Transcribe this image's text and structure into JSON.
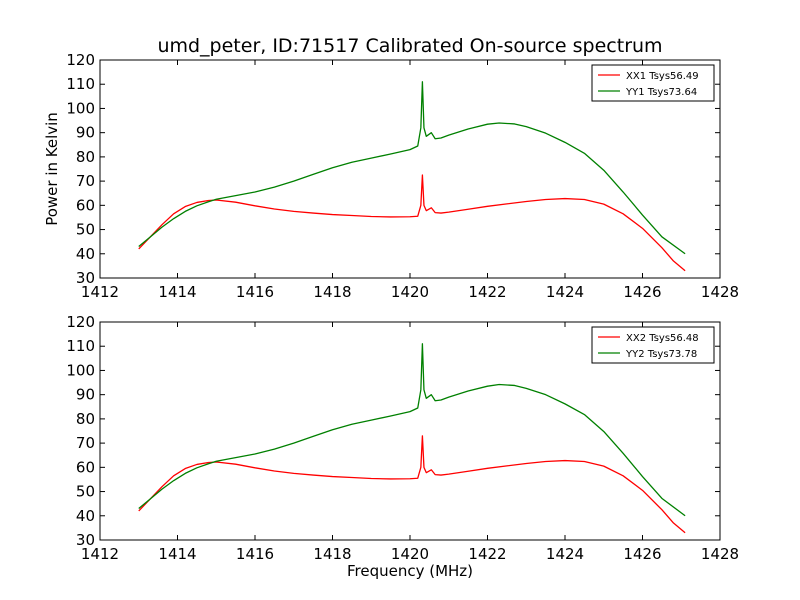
{
  "chart_data": [
    {
      "type": "line",
      "title": "umd_peter, ID:71517 Calibrated On-source spectrum",
      "xlabel": "",
      "ylabel": "Power in Kelvin",
      "xlim": [
        1412,
        1428
      ],
      "ylim": [
        30,
        120
      ],
      "xticks": [
        "1412",
        "1414",
        "1416",
        "1418",
        "1420",
        "1422",
        "1424",
        "1426",
        "1428"
      ],
      "yticks": [
        "30",
        "40",
        "50",
        "60",
        "70",
        "80",
        "90",
        "100",
        "110",
        "120"
      ],
      "legend_position": "top-right",
      "grid": false,
      "series": [
        {
          "name": "XX1 Tsys56.49",
          "color": "#ff0000",
          "points": [
            [
              1413.0,
              42
            ],
            [
              1413.3,
              47
            ],
            [
              1413.6,
              52
            ],
            [
              1413.9,
              56.5
            ],
            [
              1414.2,
              59.5
            ],
            [
              1414.5,
              61.2
            ],
            [
              1414.8,
              62.0
            ],
            [
              1415.0,
              62.2
            ],
            [
              1415.5,
              61.3
            ],
            [
              1416.0,
              59.8
            ],
            [
              1416.5,
              58.5
            ],
            [
              1417.0,
              57.5
            ],
            [
              1417.5,
              56.8
            ],
            [
              1418.0,
              56.2
            ],
            [
              1418.5,
              55.8
            ],
            [
              1419.0,
              55.4
            ],
            [
              1419.5,
              55.2
            ],
            [
              1420.0,
              55.3
            ],
            [
              1420.2,
              55.5
            ],
            [
              1420.28,
              60
            ],
            [
              1420.32,
              72.5
            ],
            [
              1420.36,
              60
            ],
            [
              1420.42,
              57.8
            ],
            [
              1420.55,
              59
            ],
            [
              1420.65,
              57
            ],
            [
              1420.8,
              56.8
            ],
            [
              1421.0,
              57.2
            ],
            [
              1421.5,
              58.4
            ],
            [
              1422.0,
              59.6
            ],
            [
              1422.5,
              60.6
            ],
            [
              1423.0,
              61.6
            ],
            [
              1423.5,
              62.4
            ],
            [
              1424.0,
              62.8
            ],
            [
              1424.5,
              62.4
            ],
            [
              1425.0,
              60.5
            ],
            [
              1425.5,
              56.5
            ],
            [
              1426.0,
              50.5
            ],
            [
              1426.5,
              42.5
            ],
            [
              1426.8,
              37
            ],
            [
              1427.1,
              33
            ]
          ]
        },
        {
          "name": "YY1 Tsys73.64",
          "color": "#008000",
          "points": [
            [
              1413.0,
              43
            ],
            [
              1413.3,
              47
            ],
            [
              1413.6,
              51
            ],
            [
              1413.9,
              54.5
            ],
            [
              1414.2,
              57.5
            ],
            [
              1414.5,
              59.8
            ],
            [
              1414.8,
              61.5
            ],
            [
              1415.0,
              62.5
            ],
            [
              1415.5,
              64.0
            ],
            [
              1416.0,
              65.5
            ],
            [
              1416.5,
              67.5
            ],
            [
              1417.0,
              70.0
            ],
            [
              1417.5,
              72.8
            ],
            [
              1418.0,
              75.5
            ],
            [
              1418.5,
              77.8
            ],
            [
              1419.0,
              79.5
            ],
            [
              1419.5,
              81.2
            ],
            [
              1420.0,
              83.0
            ],
            [
              1420.2,
              84.5
            ],
            [
              1420.28,
              92
            ],
            [
              1420.32,
              111
            ],
            [
              1420.36,
              92
            ],
            [
              1420.42,
              88.5
            ],
            [
              1420.55,
              90
            ],
            [
              1420.65,
              87.5
            ],
            [
              1420.8,
              87.8
            ],
            [
              1421.0,
              89.0
            ],
            [
              1421.5,
              91.5
            ],
            [
              1422.0,
              93.5
            ],
            [
              1422.3,
              94.0
            ],
            [
              1422.7,
              93.6
            ],
            [
              1423.0,
              92.5
            ],
            [
              1423.5,
              89.8
            ],
            [
              1424.0,
              86.0
            ],
            [
              1424.5,
              81.5
            ],
            [
              1425.0,
              74.5
            ],
            [
              1425.5,
              65.5
            ],
            [
              1426.0,
              56.0
            ],
            [
              1426.5,
              47.0
            ],
            [
              1427.1,
              40
            ]
          ]
        }
      ]
    },
    {
      "type": "line",
      "title": "",
      "xlabel": "Frequency (MHz)",
      "ylabel": "",
      "xlim": [
        1412,
        1428
      ],
      "ylim": [
        30,
        120
      ],
      "xticks": [
        "1412",
        "1414",
        "1416",
        "1418",
        "1420",
        "1422",
        "1424",
        "1426",
        "1428"
      ],
      "yticks": [
        "30",
        "40",
        "50",
        "60",
        "70",
        "80",
        "90",
        "100",
        "110",
        "120"
      ],
      "legend_position": "top-right",
      "grid": false,
      "series": [
        {
          "name": "XX2 Tsys56.48",
          "color": "#ff0000",
          "points": [
            [
              1413.0,
              42
            ],
            [
              1413.3,
              47
            ],
            [
              1413.6,
              52
            ],
            [
              1413.9,
              56.5
            ],
            [
              1414.2,
              59.5
            ],
            [
              1414.5,
              61.2
            ],
            [
              1414.8,
              62.0
            ],
            [
              1415.0,
              62.2
            ],
            [
              1415.5,
              61.3
            ],
            [
              1416.0,
              59.8
            ],
            [
              1416.5,
              58.5
            ],
            [
              1417.0,
              57.5
            ],
            [
              1417.5,
              56.8
            ],
            [
              1418.0,
              56.2
            ],
            [
              1418.5,
              55.8
            ],
            [
              1419.0,
              55.4
            ],
            [
              1419.5,
              55.2
            ],
            [
              1420.0,
              55.3
            ],
            [
              1420.2,
              55.5
            ],
            [
              1420.28,
              60
            ],
            [
              1420.32,
              73
            ],
            [
              1420.36,
              60
            ],
            [
              1420.42,
              57.8
            ],
            [
              1420.55,
              59
            ],
            [
              1420.65,
              57
            ],
            [
              1420.8,
              56.8
            ],
            [
              1421.0,
              57.2
            ],
            [
              1421.5,
              58.4
            ],
            [
              1422.0,
              59.6
            ],
            [
              1422.5,
              60.6
            ],
            [
              1423.0,
              61.6
            ],
            [
              1423.5,
              62.4
            ],
            [
              1424.0,
              62.8
            ],
            [
              1424.5,
              62.4
            ],
            [
              1425.0,
              60.5
            ],
            [
              1425.5,
              56.5
            ],
            [
              1426.0,
              50.5
            ],
            [
              1426.5,
              42.5
            ],
            [
              1426.8,
              37
            ],
            [
              1427.1,
              33
            ]
          ]
        },
        {
          "name": "YY2 Tsys73.78",
          "color": "#008000",
          "points": [
            [
              1413.0,
              43
            ],
            [
              1413.3,
              47
            ],
            [
              1413.6,
              51
            ],
            [
              1413.9,
              54.5
            ],
            [
              1414.2,
              57.5
            ],
            [
              1414.5,
              59.8
            ],
            [
              1414.8,
              61.5
            ],
            [
              1415.0,
              62.5
            ],
            [
              1415.5,
              64.0
            ],
            [
              1416.0,
              65.5
            ],
            [
              1416.5,
              67.5
            ],
            [
              1417.0,
              70.0
            ],
            [
              1417.5,
              72.8
            ],
            [
              1418.0,
              75.5
            ],
            [
              1418.5,
              77.8
            ],
            [
              1419.0,
              79.5
            ],
            [
              1419.5,
              81.2
            ],
            [
              1420.0,
              83.0
            ],
            [
              1420.2,
              84.5
            ],
            [
              1420.28,
              92
            ],
            [
              1420.32,
              111
            ],
            [
              1420.36,
              92
            ],
            [
              1420.42,
              88.5
            ],
            [
              1420.55,
              90
            ],
            [
              1420.65,
              87.5
            ],
            [
              1420.8,
              87.8
            ],
            [
              1421.0,
              89.0
            ],
            [
              1421.5,
              91.5
            ],
            [
              1422.0,
              93.5
            ],
            [
              1422.3,
              94.2
            ],
            [
              1422.7,
              93.8
            ],
            [
              1423.0,
              92.6
            ],
            [
              1423.5,
              90.0
            ],
            [
              1424.0,
              86.2
            ],
            [
              1424.5,
              81.8
            ],
            [
              1425.0,
              74.8
            ],
            [
              1425.5,
              65.8
            ],
            [
              1426.0,
              56.2
            ],
            [
              1426.5,
              47.2
            ],
            [
              1427.1,
              40
            ]
          ]
        }
      ]
    }
  ]
}
